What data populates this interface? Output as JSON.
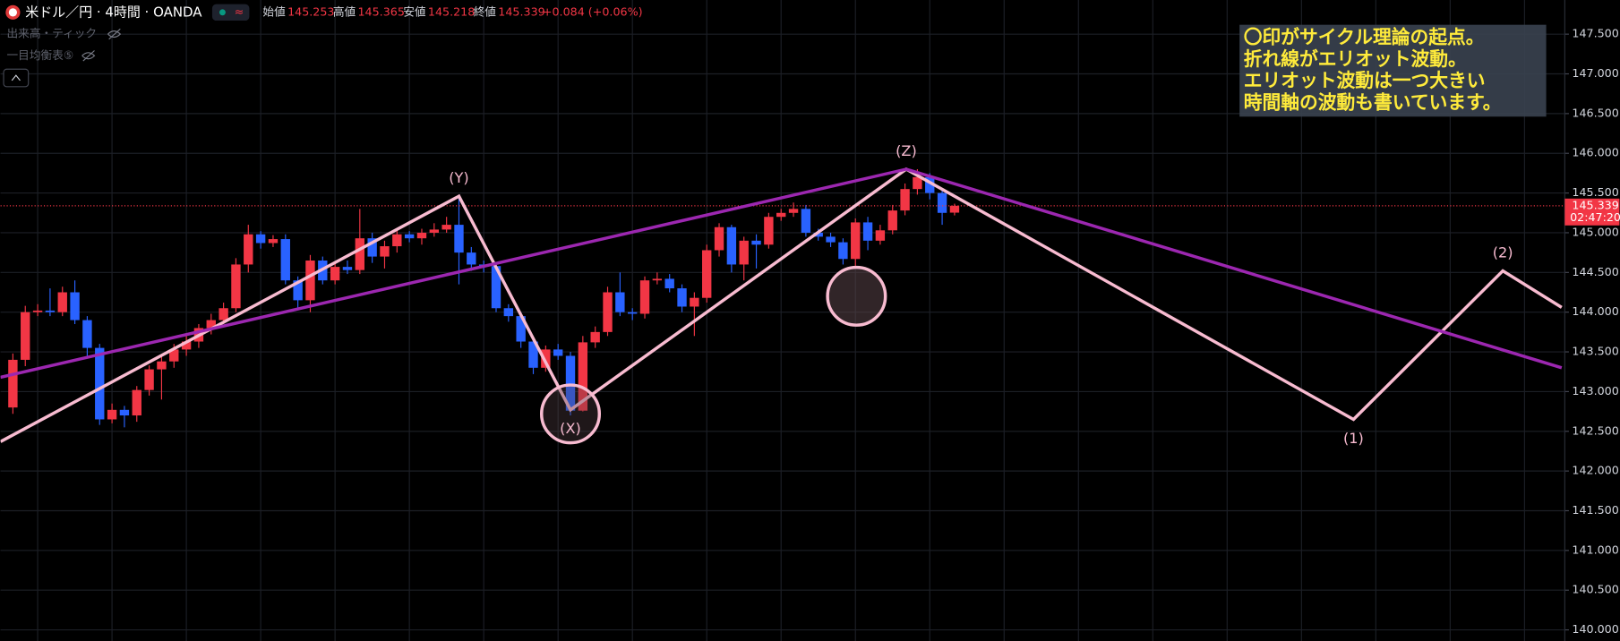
{
  "header": {
    "symbol": "米ドル／円 · 4時間 · OANDA",
    "fields": [
      {
        "label": "始値",
        "value": "145.253"
      },
      {
        "label": "高値",
        "value": "145.365"
      },
      {
        "label": "安値",
        "value": "145.218"
      },
      {
        "label": "終値",
        "value": "145.339"
      }
    ],
    "change": "+0.084 (+0.06%)",
    "indicators": [
      "出来高・ティック",
      "一目均衡表⑤"
    ]
  },
  "note": [
    "〇印がサイクル理論の起点。",
    "折れ線がエリオット波動。",
    "エリオット波動は一つ大きい",
    "時間軸の波動も書いています。"
  ],
  "chart_data": {
    "type": "candlestick",
    "up_color": "#f23645",
    "down_color": "#2962ff",
    "grid": true,
    "xlim": [
      -1,
      125.25
    ],
    "ylim": [
      139.86,
      147.93
    ],
    "yticks": [
      {
        "value": 140,
        "label": "140.000"
      },
      {
        "value": 140.5,
        "label": "140.500"
      },
      {
        "value": 141,
        "label": "141.000"
      },
      {
        "value": 141.5,
        "label": "141.500"
      },
      {
        "value": 142,
        "label": "142.000"
      },
      {
        "value": 142.5,
        "label": "142.500"
      },
      {
        "value": 143,
        "label": "143.000"
      },
      {
        "value": 143.5,
        "label": "143.500"
      },
      {
        "value": 144,
        "label": "144.000"
      },
      {
        "value": 144.5,
        "label": "144.500"
      },
      {
        "value": 145,
        "label": "145.000"
      },
      {
        "value": 145.5,
        "label": "145.500"
      },
      {
        "value": 146,
        "label": "146.000"
      },
      {
        "value": 146.5,
        "label": "146.500"
      },
      {
        "value": 147,
        "label": "147.000"
      },
      {
        "value": 147.5,
        "label": "147.500"
      }
    ],
    "open": [
      142.8,
      143.4,
      144.0,
      144.02,
      144.0,
      144.25,
      143.9,
      143.55,
      142.65,
      142.77,
      142.7,
      143.02,
      143.28,
      143.38,
      143.53,
      143.63,
      143.8,
      143.9,
      144.05,
      144.6,
      144.98,
      144.87,
      144.92,
      144.4,
      144.15,
      144.65,
      144.4,
      144.57,
      144.53,
      144.93,
      144.7,
      144.83,
      144.98,
      144.93,
      145.0,
      145.04,
      145.1,
      144.75,
      144.6,
      144.58,
      144.05,
      143.95,
      143.63,
      143.3,
      143.53,
      143.45,
      142.76,
      143.62,
      143.75,
      144.25,
      144.0,
      143.98,
      144.4,
      144.42,
      144.3,
      144.07,
      144.18,
      144.78,
      145.07,
      144.6,
      144.9,
      144.85,
      145.2,
      145.25,
      145.3,
      145.0,
      144.95,
      144.88,
      144.67,
      145.13,
      144.9,
      145.03,
      145.28,
      145.55,
      145.7,
      145.5,
      145.253
    ],
    "high": [
      143.48,
      144.08,
      144.1,
      144.3,
      144.32,
      144.4,
      143.95,
      143.6,
      142.85,
      142.82,
      143.07,
      143.33,
      143.45,
      143.6,
      143.7,
      143.85,
      143.98,
      144.12,
      144.68,
      145.1,
      145.02,
      144.97,
      144.98,
      144.45,
      144.72,
      144.7,
      144.62,
      144.65,
      145.3,
      145.0,
      144.9,
      145.05,
      145.02,
      145.05,
      145.12,
      145.2,
      145.46,
      144.82,
      144.65,
      144.62,
      144.1,
      144.0,
      143.68,
      143.58,
      143.6,
      143.5,
      143.7,
      143.82,
      144.32,
      144.5,
      144.05,
      144.45,
      144.5,
      144.48,
      144.35,
      144.25,
      144.85,
      145.12,
      145.1,
      144.95,
      144.98,
      145.25,
      145.3,
      145.38,
      145.35,
      145.05,
      145.0,
      144.93,
      145.18,
      145.2,
      145.1,
      145.35,
      145.62,
      145.8,
      145.75,
      145.55,
      145.365
    ],
    "low": [
      142.72,
      143.32,
      143.95,
      143.95,
      143.95,
      143.85,
      143.45,
      142.58,
      142.6,
      142.55,
      142.62,
      142.95,
      142.9,
      143.3,
      143.45,
      143.55,
      143.72,
      143.85,
      144.0,
      144.5,
      144.8,
      144.82,
      144.35,
      144.05,
      144.0,
      144.35,
      144.35,
      144.48,
      144.48,
      144.62,
      144.55,
      144.75,
      144.88,
      144.85,
      144.95,
      145.0,
      144.35,
      144.52,
      144.5,
      144.0,
      143.88,
      143.55,
      143.22,
      143.25,
      143.4,
      142.7,
      142.75,
      143.55,
      143.7,
      143.95,
      143.9,
      143.92,
      144.35,
      144.25,
      144.0,
      143.7,
      144.12,
      144.7,
      144.5,
      144.4,
      144.55,
      144.8,
      145.15,
      145.2,
      144.95,
      144.9,
      144.82,
      144.6,
      144.58,
      144.78,
      144.85,
      144.98,
      145.22,
      145.48,
      145.42,
      145.1,
      145.218
    ],
    "close": [
      143.4,
      144.0,
      144.02,
      144.0,
      144.25,
      143.9,
      143.55,
      142.65,
      142.77,
      142.7,
      143.02,
      143.28,
      143.38,
      143.53,
      143.63,
      143.8,
      143.9,
      144.05,
      144.6,
      144.98,
      144.87,
      144.92,
      144.4,
      144.15,
      144.65,
      144.4,
      144.57,
      144.53,
      144.93,
      144.7,
      144.83,
      144.98,
      144.93,
      145.0,
      145.04,
      145.1,
      144.75,
      144.6,
      144.58,
      144.05,
      143.95,
      143.63,
      143.3,
      143.53,
      143.45,
      142.76,
      143.62,
      143.75,
      144.25,
      144.0,
      143.98,
      144.4,
      144.42,
      144.3,
      144.07,
      144.18,
      144.78,
      145.07,
      144.6,
      144.9,
      144.85,
      145.2,
      145.25,
      145.3,
      145.0,
      144.95,
      144.88,
      144.67,
      145.13,
      144.9,
      145.03,
      145.28,
      145.55,
      145.7,
      145.5,
      145.25,
      145.339
    ],
    "lines": [
      {
        "color": "#f8bbd0",
        "x": [
          -1,
          36,
          45,
          72.1,
          108.2,
          120.25,
          125
        ],
        "y": [
          142.37,
          145.46,
          142.77,
          145.8,
          142.65,
          144.52,
          144.06
        ],
        "point_labels": [
          null,
          "(Y)",
          "(X)",
          "(Z)",
          "(1)",
          "(2)",
          null
        ]
      },
      {
        "color": "#9c27b0",
        "x": [
          -1,
          72.1,
          125
        ],
        "y": [
          143.18,
          145.8,
          143.3
        ]
      }
    ],
    "last_price": {
      "value": 145.339,
      "label": "145.339",
      "color": "#f23645"
    },
    "countdown": "02:47:20"
  }
}
